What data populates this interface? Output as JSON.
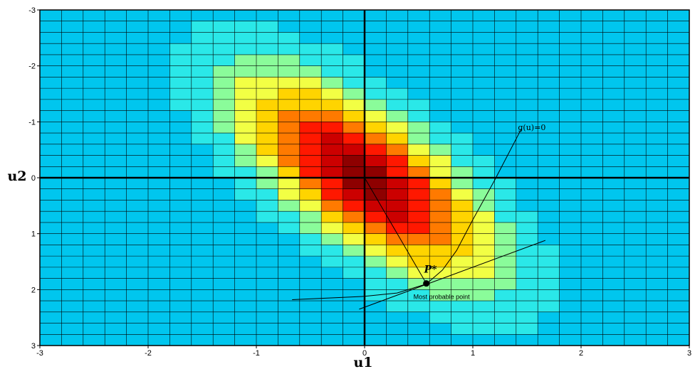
{
  "chart_data": {
    "type": "heatmap",
    "title": "",
    "xlabel": "u1",
    "ylabel": "u2",
    "xlim": [
      -3,
      3
    ],
    "ylim": [
      -3,
      3
    ],
    "y_axis_inverted": true,
    "x_ticks": [
      "-3",
      "-2",
      "-1",
      "0",
      "1",
      "2",
      "3"
    ],
    "y_ticks": [
      "-3",
      "-2",
      "-1",
      "0",
      "1",
      "2",
      "3"
    ],
    "grid": true,
    "grid_step": 0.2,
    "density": {
      "center": [
        0,
        0
      ],
      "sd_u1": 0.8,
      "sd_u2": 1.25,
      "correlation": 0.7
    },
    "colors": {
      "background": "#00c6ee",
      "scale": [
        "#00c6ee",
        "#2ae8e8",
        "#8afc9a",
        "#f2ff44",
        "#ffd400",
        "#ff7a00",
        "#ff1800",
        "#cc0000",
        "#8e0000"
      ],
      "axes": "#000000",
      "grid": "#000000"
    },
    "limit_state_curve": {
      "label": "g(u)=0",
      "points": [
        [
          1.45,
          -0.88
        ],
        [
          1.2,
          0.05
        ],
        [
          1.0,
          0.75
        ],
        [
          0.85,
          1.3
        ],
        [
          0.72,
          1.65
        ],
        [
          0.57,
          1.9
        ],
        [
          0.3,
          2.06
        ],
        [
          0.0,
          2.12
        ],
        [
          -0.67,
          2.18
        ]
      ]
    },
    "tangent_line": {
      "points": [
        [
          -0.05,
          2.35
        ],
        [
          1.67,
          1.12
        ]
      ]
    },
    "design_point": {
      "label": "P*",
      "annotation": "Most probable point",
      "x": 0.57,
      "y": 1.89
    },
    "reliability_vector": {
      "from": [
        0,
        0
      ],
      "to": [
        0.57,
        1.89
      ]
    }
  }
}
